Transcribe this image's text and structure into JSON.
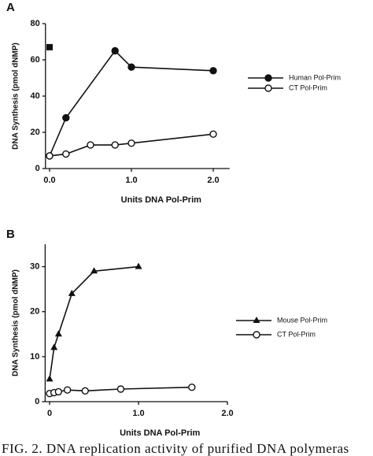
{
  "chart_data": [
    {
      "type": "line",
      "panel": "A",
      "x_label": "Units DNA Pol-Prim",
      "y_label": "DNA Synthesis (pmol dNMP)",
      "xlim": [
        -0.05,
        2.2
      ],
      "ylim": [
        0,
        80
      ],
      "xticks": [
        {
          "value": 0,
          "label": "0.0"
        },
        {
          "value": 1,
          "label": "1.0"
        },
        {
          "value": 2,
          "label": "2.0"
        }
      ],
      "yticks": [
        0,
        20,
        40,
        60,
        80
      ],
      "legend": "right",
      "series": [
        {
          "name": "Human Pol-Prim",
          "color": "#111",
          "marker": "circle-filled",
          "x": [
            0,
            0.2,
            0.8,
            1.0,
            2.0
          ],
          "values": [
            7,
            28,
            65,
            56,
            54
          ]
        },
        {
          "name": "CT Pol-Prim",
          "color": "#111",
          "marker": "circle-open",
          "x": [
            0,
            0.2,
            0.5,
            0.8,
            1.0,
            2.0
          ],
          "values": [
            7,
            8,
            13,
            13,
            14,
            19
          ]
        },
        {
          "color": "#111",
          "marker": "square",
          "x": [
            0
          ],
          "values": [
            67
          ]
        }
      ]
    },
    {
      "type": "line",
      "panel": "B",
      "x_label": "Units DNA Pol-Prim",
      "y_label": "DNA Synthesis (pmol dNMP)",
      "xlim": [
        -0.05,
        2.0
      ],
      "ylim": [
        0,
        35
      ],
      "xticks": [
        0,
        {
          "value": 1,
          "label": "1.0"
        },
        {
          "value": 2,
          "label": "2.0"
        }
      ],
      "yticks": [
        0,
        10,
        20,
        30
      ],
      "legend": "right",
      "series": [
        {
          "name": "Mouse Pol-Prim",
          "color": "#111",
          "marker": "triangle",
          "x": [
            0,
            0.05,
            0.1,
            0.25,
            0.5,
            1.0
          ],
          "values": [
            5,
            12,
            15,
            24,
            29,
            30
          ]
        },
        {
          "name": "CT Pol-Prim",
          "color": "#111",
          "marker": "circle-open",
          "x": [
            0,
            0.05,
            0.1,
            0.2,
            0.4,
            0.8,
            1.6
          ],
          "values": [
            1.8,
            2.0,
            2.2,
            2.6,
            2.4,
            2.8,
            3.2
          ]
        }
      ]
    }
  ],
  "caption": "FIG. 2. DNA replication activity of purified DNA polymeras"
}
